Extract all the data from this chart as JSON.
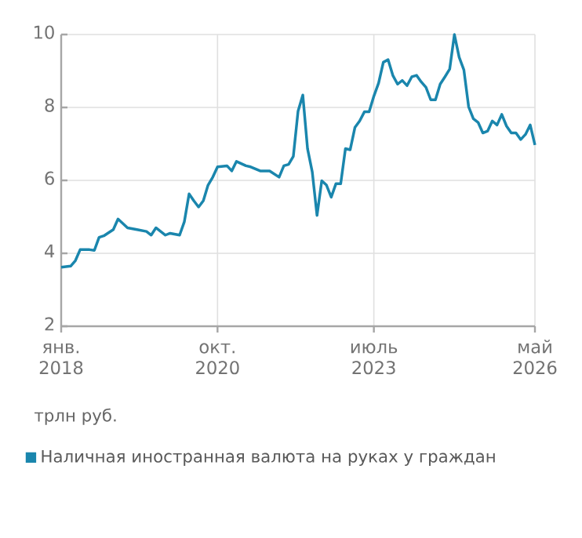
{
  "chart_data": {
    "type": "line",
    "ylabel": "трлн руб.",
    "x": [
      "2018-01",
      "2018-03",
      "2018-04",
      "2018-05",
      "2018-07",
      "2018-08",
      "2018-09",
      "2018-10",
      "2018-12",
      "2019-01",
      "2019-03",
      "2019-05",
      "2019-07",
      "2019-08",
      "2019-09",
      "2019-11",
      "2019-12",
      "2020-02",
      "2020-03",
      "2020-04",
      "2020-05",
      "2020-06",
      "2020-07",
      "2020-08",
      "2020-09",
      "2020-10",
      "2020-12",
      "2021-01",
      "2021-02",
      "2021-04",
      "2021-05",
      "2021-07",
      "2021-09",
      "2021-11",
      "2021-12",
      "2022-01",
      "2022-02",
      "2022-03",
      "2022-04",
      "2022-05",
      "2022-06",
      "2022-07",
      "2022-08",
      "2022-09",
      "2022-10",
      "2022-11",
      "2022-12",
      "2023-01",
      "2023-02",
      "2023-03",
      "2023-04",
      "2023-05",
      "2023-06",
      "2023-07",
      "2023-08",
      "2023-09",
      "2023-10",
      "2023-11",
      "2023-12",
      "2024-01",
      "2024-02",
      "2024-03",
      "2024-04",
      "2024-05",
      "2024-06",
      "2024-07",
      "2024-08",
      "2024-09",
      "2024-10",
      "2024-11",
      "2024-12",
      "2025-01",
      "2025-02",
      "2025-03",
      "2025-04",
      "2025-05",
      "2025-06",
      "2025-07",
      "2025-08",
      "2025-09",
      "2025-10",
      "2025-11",
      "2025-12",
      "2026-01",
      "2026-02",
      "2026-03",
      "2026-04",
      "2026-05"
    ],
    "series": [
      {
        "name": "Наличная иностранная валюта на руках у граждан",
        "color": "#1a86ad",
        "values": [
          3.62,
          3.65,
          3.8,
          4.1,
          4.1,
          4.08,
          4.44,
          4.48,
          4.65,
          4.94,
          4.7,
          4.65,
          4.6,
          4.5,
          4.7,
          4.5,
          4.55,
          4.5,
          4.87,
          5.63,
          5.44,
          5.27,
          5.44,
          5.87,
          6.09,
          6.37,
          6.4,
          6.26,
          6.52,
          6.4,
          6.37,
          6.26,
          6.26,
          6.09,
          6.4,
          6.44,
          6.66,
          7.9,
          8.34,
          6.87,
          6.23,
          5.04,
          5.99,
          5.87,
          5.54,
          5.91,
          5.91,
          6.87,
          6.84,
          7.45,
          7.63,
          7.88,
          7.88,
          8.31,
          8.67,
          9.24,
          9.31,
          8.88,
          8.64,
          8.74,
          8.6,
          8.84,
          8.88,
          8.7,
          8.55,
          8.21,
          8.21,
          8.64,
          8.84,
          9.05,
          10.0,
          9.38,
          9.03,
          8.02,
          7.69,
          7.59,
          7.3,
          7.35,
          7.63,
          7.52,
          7.81,
          7.49,
          7.3,
          7.3,
          7.12,
          7.26,
          7.52,
          6.97
        ]
      }
    ],
    "xlim": [
      "2018-01",
      "2026-05"
    ],
    "xticks": [
      {
        "value": "2018-01",
        "label": "янв. 2018"
      },
      {
        "value": "2020-10",
        "label": "окт. 2020"
      },
      {
        "value": "2023-07",
        "label": "июль 2023"
      },
      {
        "value": "2026-05",
        "label": "май 2026"
      }
    ],
    "ylim": [
      2,
      10
    ],
    "yticks": [
      2,
      4,
      6,
      8,
      10
    ],
    "grid": true,
    "legend": "bottom",
    "marker": "none",
    "line_style": "solid"
  }
}
